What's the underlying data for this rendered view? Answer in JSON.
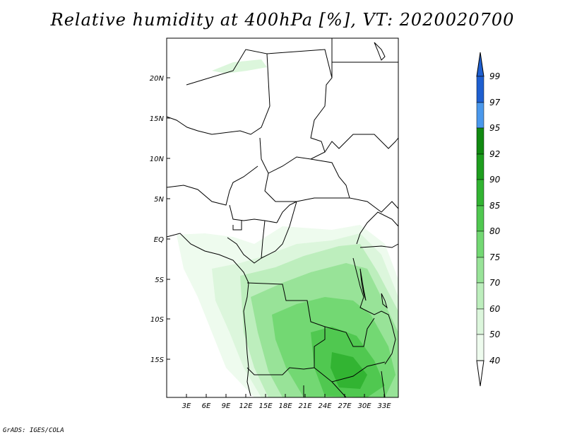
{
  "title": "Relative humidity at 400hPa [%], VT: 2020020700",
  "credit": "GrADS: IGES/COLA",
  "map": {
    "lat_labels": [
      "20N",
      "15N",
      "10N",
      "5N",
      "EQ",
      "5S",
      "10S",
      "15S"
    ],
    "lon_labels": [
      "3E",
      "6E",
      "9E",
      "12E",
      "15E",
      "18E",
      "21E",
      "24E",
      "27E",
      "30E",
      "33E"
    ]
  },
  "colorbar": {
    "labels": [
      "99",
      "97",
      "95",
      "92",
      "90",
      "85",
      "80",
      "75",
      "70",
      "60",
      "50",
      "40"
    ],
    "colors": {
      "c99": "#1e5fd0",
      "c97": "#2e7be0",
      "c95": "#4a98ec",
      "c92": "#118a11",
      "c90": "#1e9e1e",
      "c85": "#32b432",
      "c80": "#50c850",
      "c75": "#73d873",
      "c70": "#98e398",
      "c60": "#bdeebd",
      "c50": "#dcf6dc",
      "c40": "#eefbee"
    }
  }
}
